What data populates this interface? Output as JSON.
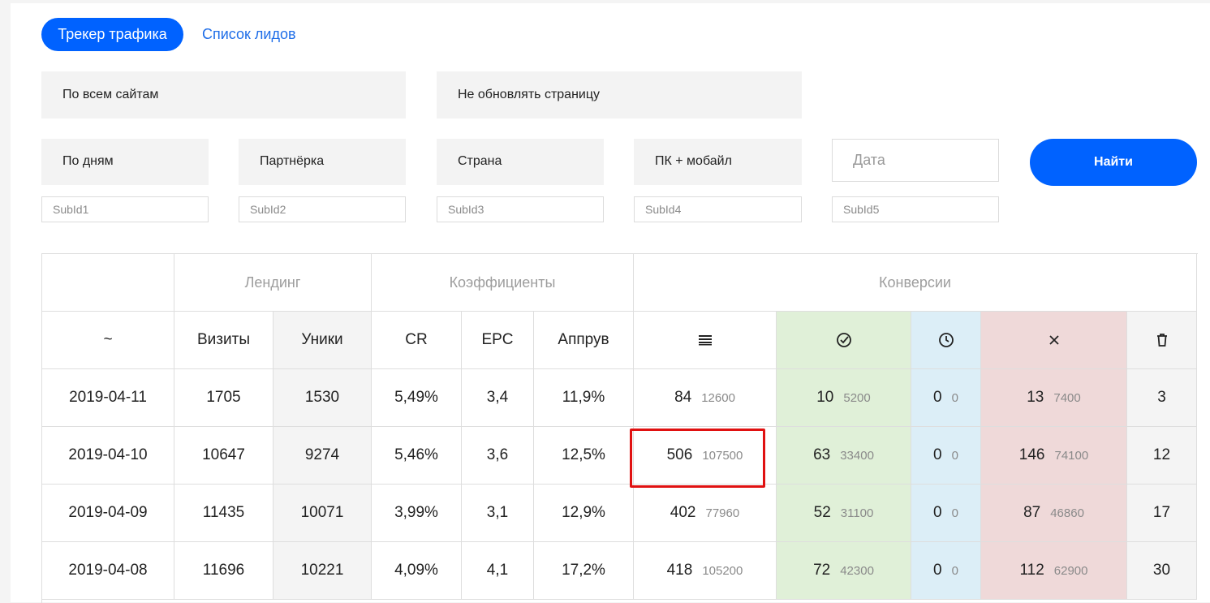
{
  "tabs": {
    "active": "Трекер трафика",
    "link": "Список лидов"
  },
  "filters": {
    "sites": "По всем сайтам",
    "refresh": "Не обновлять страницу",
    "period": "По дням",
    "partner": "Партнёрка",
    "country": "Страна",
    "device": "ПК + мобайл",
    "date_placeholder": "Дата",
    "find_button": "Найти",
    "subids": [
      "SubId1",
      "SubId2",
      "SubId3",
      "SubId4",
      "SubId5"
    ]
  },
  "table": {
    "groups": {
      "landing": "Лендинг",
      "coefficients": "Коэффициенты",
      "conversions": "Конверсии"
    },
    "headers": {
      "date": "~",
      "visits": "Визиты",
      "uniques": "Уники",
      "cr": "CR",
      "epc": "EPC",
      "approve": "Аппрув",
      "all_icon": "list-icon",
      "approved_icon": "check-circle-icon",
      "pending_icon": "clock-icon",
      "rejected_icon": "cross-icon",
      "trash_icon": "trash-icon"
    },
    "rows": [
      {
        "date": "2019-04-11",
        "visits": "1705",
        "uniques": "1530",
        "cr": "5,49%",
        "epc": "3,4",
        "approve": "11,9%",
        "all": "84",
        "all_sum": "12600",
        "ok": "10",
        "ok_sum": "5200",
        "wait": "0",
        "wait_sum": "0",
        "rej": "13",
        "rej_sum": "7400",
        "trash": "3"
      },
      {
        "date": "2019-04-10",
        "visits": "10647",
        "uniques": "9274",
        "cr": "5,46%",
        "epc": "3,6",
        "approve": "12,5%",
        "all": "506",
        "all_sum": "107500",
        "ok": "63",
        "ok_sum": "33400",
        "wait": "0",
        "wait_sum": "0",
        "rej": "146",
        "rej_sum": "74100",
        "trash": "12"
      },
      {
        "date": "2019-04-09",
        "visits": "11435",
        "uniques": "10071",
        "cr": "3,99%",
        "epc": "3,1",
        "approve": "12,9%",
        "all": "402",
        "all_sum": "77960",
        "ok": "52",
        "ok_sum": "31100",
        "wait": "0",
        "wait_sum": "0",
        "rej": "87",
        "rej_sum": "46860",
        "trash": "17"
      },
      {
        "date": "2019-04-08",
        "visits": "11696",
        "uniques": "10221",
        "cr": "4,09%",
        "epc": "4,1",
        "approve": "17,2%",
        "all": "418",
        "all_sum": "105200",
        "ok": "72",
        "ok_sum": "42300",
        "wait": "0",
        "wait_sum": "0",
        "rej": "112",
        "rej_sum": "62900",
        "trash": "30"
      }
    ]
  },
  "colors": {
    "accent": "#0062ff",
    "approved_bg": "#e0f0d8",
    "pending_bg": "#dceef7",
    "rejected_bg": "#efd9d9",
    "highlight": "#e01111"
  }
}
